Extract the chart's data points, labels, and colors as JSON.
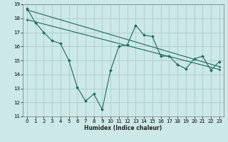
{
  "xlabel": "Humidex (Indice chaleur)",
  "background_color": "#cce8e8",
  "grid_color": "#aacccc",
  "line_color": "#1a6b5a",
  "xlim": [
    -0.5,
    23.5
  ],
  "ylim": [
    11,
    19
  ],
  "xticks": [
    0,
    1,
    2,
    3,
    4,
    5,
    6,
    7,
    8,
    9,
    10,
    11,
    12,
    13,
    14,
    15,
    16,
    17,
    18,
    19,
    20,
    21,
    22,
    23
  ],
  "yticks": [
    11,
    12,
    13,
    14,
    15,
    16,
    17,
    18,
    19
  ],
  "series1_x": [
    0,
    1,
    2,
    3,
    4,
    5,
    6,
    7,
    8,
    9,
    10,
    11,
    12,
    13,
    14,
    15,
    16,
    17,
    18,
    19,
    20,
    21,
    22,
    23
  ],
  "series1_y": [
    18.7,
    17.7,
    17.0,
    16.4,
    16.2,
    15.0,
    13.1,
    12.1,
    12.6,
    11.5,
    14.3,
    16.0,
    16.1,
    17.5,
    16.8,
    16.7,
    15.3,
    15.3,
    14.7,
    14.4,
    15.1,
    15.3,
    14.3,
    14.9
  ],
  "series2_x": [
    0,
    23
  ],
  "series2_y": [
    18.6,
    14.55
  ],
  "series3_x": [
    0,
    23
  ],
  "series3_y": [
    17.9,
    14.35
  ]
}
